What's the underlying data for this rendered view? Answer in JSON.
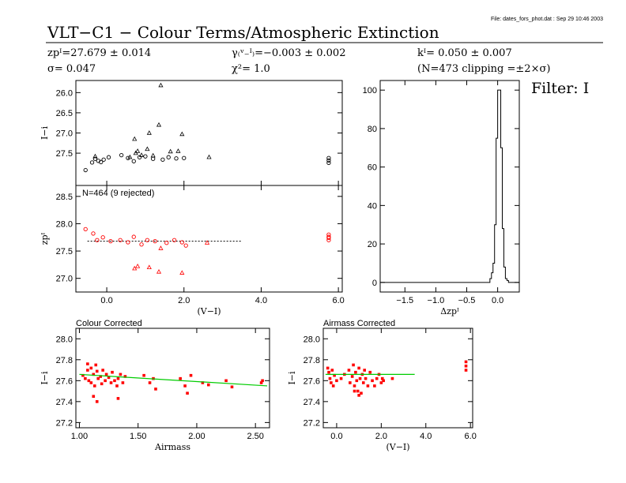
{
  "header": {
    "file_line": "File: dates_fors_phot.dat : Sep 29 10:46 2003",
    "title": "VLT−C1 − Colour Terms/Atmospheric Extinction",
    "filter": "Filter: I",
    "stats": {
      "zp": "zpᴵ=27.679 ± 0.014",
      "sigma": "σ= 0.047",
      "gamma": "γ₍ᵛ₋ᴵ₎=−0.003 ± 0.002",
      "chi2": "χ²=  1.0",
      "k": "kᴵ= 0.050 ± 0.007",
      "clip": "(N=473 clipping =±2×σ)"
    }
  },
  "colors": {
    "points": "#ff0000",
    "fit_line": "#00cc00",
    "axis": "#000000",
    "bg": "#ffffff"
  },
  "chart_data": [
    {
      "id": "instr-mag-vs-colour",
      "type": "scatter",
      "xlabel": "",
      "ylabel": "I−i",
      "xlim": [
        -0.8,
        6.1
      ],
      "ylim": [
        28.3,
        25.7
      ],
      "yticks": [
        27.5,
        27.0,
        26.5,
        26.0
      ],
      "yticklabels": [
        "27.5",
        "27.0",
        "26.5",
        "26.0"
      ],
      "series": [
        {
          "marker": "circle",
          "points": [
            [
              -0.55,
              27.92
            ],
            [
              -0.38,
              27.73
            ],
            [
              -0.3,
              27.64
            ],
            [
              -0.22,
              27.69
            ],
            [
              -0.15,
              27.72
            ],
            [
              -0.08,
              27.66
            ],
            [
              0.05,
              27.6
            ],
            [
              0.38,
              27.55
            ],
            [
              0.55,
              27.62
            ],
            [
              0.7,
              27.7
            ],
            [
              0.85,
              27.6
            ],
            [
              1.0,
              27.58
            ],
            [
              1.2,
              27.64
            ],
            [
              1.45,
              27.66
            ],
            [
              1.6,
              27.6
            ],
            [
              1.8,
              27.63
            ],
            [
              2.0,
              27.62
            ],
            [
              5.75,
              27.74
            ],
            [
              5.75,
              27.68
            ],
            [
              5.75,
              27.62
            ]
          ]
        },
        {
          "marker": "triangle",
          "points": [
            [
              -0.3,
              27.58
            ],
            [
              0.75,
              27.5
            ],
            [
              0.8,
              27.45
            ],
            [
              0.72,
              27.15
            ],
            [
              1.05,
              27.4
            ],
            [
              1.2,
              27.56
            ],
            [
              1.65,
              27.46
            ],
            [
              2.65,
              27.6
            ],
            [
              1.85,
              27.45
            ],
            [
              1.1,
              27.0
            ],
            [
              1.95,
              27.03
            ],
            [
              1.35,
              26.8
            ],
            [
              1.4,
              25.82
            ],
            [
              0.6,
              27.6
            ],
            [
              0.9,
              27.55
            ]
          ]
        }
      ]
    },
    {
      "id": "zeropoint-vs-colour",
      "type": "scatter",
      "xlabel": "(V−I)",
      "ylabel": "zpᴵ",
      "annotation": "N=464 (9 rejected)",
      "xlim": [
        -0.8,
        6.1
      ],
      "ylim": [
        26.75,
        28.7
      ],
      "xticks": [
        0.0,
        2.0,
        4.0,
        6.0
      ],
      "xticklabels": [
        "0.0",
        "2.0",
        "4.0",
        "6.0"
      ],
      "yticks": [
        27.0,
        27.5,
        28.0,
        28.5
      ],
      "yticklabels": [
        "27.0",
        "27.5",
        "28.0",
        "28.5"
      ],
      "fit": {
        "x": [
          -0.5,
          3.5
        ],
        "y": [
          27.68,
          27.68
        ]
      },
      "series": [
        {
          "marker": "circle",
          "points": [
            [
              -0.55,
              27.9
            ],
            [
              -0.35,
              27.82
            ],
            [
              -0.25,
              27.7
            ],
            [
              -0.1,
              27.75
            ],
            [
              0.1,
              27.68
            ],
            [
              0.35,
              27.7
            ],
            [
              0.55,
              27.66
            ],
            [
              0.7,
              27.76
            ],
            [
              0.9,
              27.62
            ],
            [
              1.05,
              27.7
            ],
            [
              1.25,
              27.68
            ],
            [
              1.55,
              27.65
            ],
            [
              1.75,
              27.7
            ],
            [
              1.95,
              27.66
            ],
            [
              2.05,
              27.6
            ],
            [
              5.75,
              27.8
            ],
            [
              5.75,
              27.74
            ],
            [
              5.75,
              27.7
            ],
            [
              5.75,
              27.76
            ]
          ]
        },
        {
          "marker": "triangle",
          "points": [
            [
              0.72,
              27.18
            ],
            [
              1.1,
              27.2
            ],
            [
              1.35,
              27.12
            ],
            [
              1.95,
              27.1
            ],
            [
              1.4,
              27.55
            ],
            [
              0.8,
              27.22
            ],
            [
              2.6,
              27.65
            ]
          ]
        }
      ]
    },
    {
      "id": "dzp-histogram",
      "type": "bar",
      "xlabel": "Δzpᴵ",
      "ylabel": "",
      "xlim": [
        -1.9,
        0.35
      ],
      "ylim": [
        -5,
        105
      ],
      "xticks": [
        -1.5,
        -1.0,
        -0.5,
        0.0
      ],
      "xticklabels": [
        "−1.5",
        "−1.0",
        "−0.5",
        "0.0"
      ],
      "yticks": [
        0,
        20,
        40,
        60,
        80,
        100
      ],
      "yticklabels": [
        "0",
        "20",
        "40",
        "60",
        "80",
        "100"
      ],
      "bin_width": 0.025,
      "bins": [
        [
          -0.125,
          2
        ],
        [
          -0.1,
          5
        ],
        [
          -0.075,
          10
        ],
        [
          -0.05,
          30
        ],
        [
          -0.025,
          75
        ],
        [
          0.0,
          100
        ],
        [
          0.025,
          100
        ],
        [
          0.05,
          70
        ],
        [
          0.075,
          28
        ],
        [
          0.1,
          8
        ],
        [
          0.125,
          2
        ],
        [
          0.15,
          1
        ]
      ]
    },
    {
      "id": "colour-corrected-vs-airmass",
      "type": "scatter",
      "title": "Colour Corrected",
      "xlabel": "Airmass",
      "ylabel": "I−i",
      "xlim": [
        0.97,
        2.62
      ],
      "ylim": [
        27.15,
        28.1
      ],
      "xticks": [
        1.0,
        1.5,
        2.0,
        2.5
      ],
      "xticklabels": [
        "1.00",
        "1.50",
        "2.00",
        "2.50"
      ],
      "yticks": [
        27.2,
        27.4,
        27.6,
        27.8,
        28.0
      ],
      "yticklabels": [
        "27.2",
        "27.4",
        "27.6",
        "27.8",
        "28.0"
      ],
      "fit": {
        "x": [
          1.0,
          2.6
        ],
        "y": [
          27.66,
          27.55
        ]
      },
      "series": [
        {
          "marker": "square",
          "points": [
            [
              1.03,
              27.65
            ],
            [
              1.05,
              27.62
            ],
            [
              1.07,
              27.7
            ],
            [
              1.08,
              27.6
            ],
            [
              1.1,
              27.58
            ],
            [
              1.1,
              27.72
            ],
            [
              1.12,
              27.66
            ],
            [
              1.13,
              27.55
            ],
            [
              1.15,
              27.69
            ],
            [
              1.16,
              27.62
            ],
            [
              1.18,
              27.64
            ],
            [
              1.19,
              27.57
            ],
            [
              1.2,
              27.7
            ],
            [
              1.22,
              27.6
            ],
            [
              1.23,
              27.66
            ],
            [
              1.25,
              27.63
            ],
            [
              1.27,
              27.58
            ],
            [
              1.28,
              27.68
            ],
            [
              1.3,
              27.6
            ],
            [
              1.32,
              27.55
            ],
            [
              1.33,
              27.62
            ],
            [
              1.35,
              27.66
            ],
            [
              1.37,
              27.58
            ],
            [
              1.39,
              27.64
            ],
            [
              1.12,
              27.45
            ],
            [
              1.15,
              27.4
            ],
            [
              1.33,
              27.43
            ],
            [
              1.07,
              27.76
            ],
            [
              1.14,
              27.75
            ],
            [
              1.55,
              27.65
            ],
            [
              1.6,
              27.58
            ],
            [
              1.63,
              27.62
            ],
            [
              1.65,
              27.52
            ],
            [
              1.86,
              27.62
            ],
            [
              1.9,
              27.55
            ],
            [
              1.92,
              27.48
            ],
            [
              1.95,
              27.65
            ],
            [
              2.05,
              27.58
            ],
            [
              2.1,
              27.56
            ],
            [
              2.25,
              27.6
            ],
            [
              2.3,
              27.54
            ],
            [
              2.55,
              27.58
            ],
            [
              2.56,
              27.6
            ]
          ]
        }
      ]
    },
    {
      "id": "airmass-corrected-vs-colour",
      "type": "scatter",
      "title": "Airmass Corrected",
      "xlabel": "(V−I)",
      "ylabel": "I−i",
      "xlim": [
        -0.6,
        6.1
      ],
      "ylim": [
        27.15,
        28.1
      ],
      "xticks": [
        0.0,
        2.0,
        4.0,
        6.0
      ],
      "xticklabels": [
        "0.0",
        "2.0",
        "4.0",
        "6.0"
      ],
      "yticks": [
        27.2,
        27.4,
        27.6,
        27.8,
        28.0
      ],
      "yticklabels": [
        "27.2",
        "27.4",
        "27.6",
        "27.8",
        "28.0"
      ],
      "fit": {
        "x": [
          -0.5,
          3.5
        ],
        "y": [
          27.66,
          27.66
        ]
      },
      "series": [
        {
          "marker": "square",
          "points": [
            [
              -0.4,
              27.72
            ],
            [
              -0.35,
              27.68
            ],
            [
              -0.3,
              27.62
            ],
            [
              -0.25,
              27.58
            ],
            [
              -0.2,
              27.7
            ],
            [
              -0.15,
              27.55
            ],
            [
              -0.1,
              27.65
            ],
            [
              0.0,
              27.6
            ],
            [
              0.2,
              27.62
            ],
            [
              0.35,
              27.66
            ],
            [
              0.55,
              27.7
            ],
            [
              0.6,
              27.58
            ],
            [
              0.7,
              27.64
            ],
            [
              0.75,
              27.75
            ],
            [
              0.8,
              27.55
            ],
            [
              0.85,
              27.68
            ],
            [
              0.9,
              27.6
            ],
            [
              0.95,
              27.5
            ],
            [
              1.0,
              27.72
            ],
            [
              1.05,
              27.62
            ],
            [
              1.1,
              27.48
            ],
            [
              1.15,
              27.66
            ],
            [
              1.2,
              27.58
            ],
            [
              1.25,
              27.7
            ],
            [
              1.3,
              27.62
            ],
            [
              1.4,
              27.55
            ],
            [
              1.5,
              27.68
            ],
            [
              1.6,
              27.6
            ],
            [
              1.7,
              27.55
            ],
            [
              1.8,
              27.62
            ],
            [
              1.9,
              27.66
            ],
            [
              2.0,
              27.58
            ],
            [
              2.05,
              27.62
            ],
            [
              2.1,
              27.6
            ],
            [
              2.5,
              27.62
            ],
            [
              5.8,
              27.78
            ],
            [
              5.8,
              27.74
            ],
            [
              5.8,
              27.7
            ],
            [
              1.0,
              27.46
            ],
            [
              0.8,
              27.5
            ]
          ]
        }
      ]
    }
  ]
}
